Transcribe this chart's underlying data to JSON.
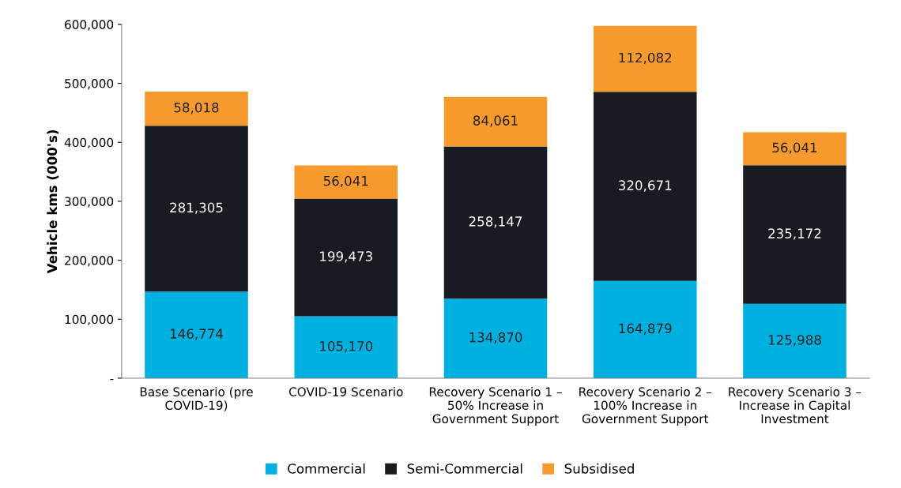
{
  "chart_data": {
    "type": "bar",
    "stacked": true,
    "ylabel": "Vehicle kms (000's)",
    "categories": [
      "Base Scenario (pre\nCOVID-19)",
      "COVID-19 Scenario",
      "Recovery Scenario 1 –\n50% Increase in\nGovernment Support",
      "Recovery Scenario 2 –\n100% Increase in\nGovernment Support",
      "Recovery Scenario 3 –\nIncrease in Capital\nInvestment"
    ],
    "series": [
      {
        "name": "Commercial",
        "color": "#00b0e0",
        "values": [
          146774,
          105170,
          134870,
          164879,
          125988
        ],
        "value_labels": [
          "146,774",
          "105,170",
          "134,870",
          "164,879",
          "125,988"
        ]
      },
      {
        "name": "Semi-Commercial",
        "color": "#181b21",
        "values": [
          281305,
          199473,
          258147,
          320671,
          235172
        ],
        "value_labels": [
          "281,305",
          "199,473",
          "258,147",
          "320,671",
          "235,172"
        ]
      },
      {
        "name": "Subsidised",
        "color": "#f79a2e",
        "values": [
          58018,
          56041,
          84061,
          112082,
          56041
        ],
        "value_labels": [
          "58,018",
          "56,041",
          "84,061",
          "112,082",
          "56,041"
        ]
      }
    ],
    "ylim": [
      0,
      600000
    ],
    "yticks": [
      {
        "value": 0,
        "label": "-"
      },
      {
        "value": 100000,
        "label": "100,000"
      },
      {
        "value": 200000,
        "label": "200,000"
      },
      {
        "value": 300000,
        "label": "300,000"
      },
      {
        "value": 400000,
        "label": "400,000"
      },
      {
        "value": 500000,
        "label": "500,000"
      },
      {
        "value": 600000,
        "label": "600,000"
      }
    ],
    "grid": false,
    "legend": "bottom"
  }
}
